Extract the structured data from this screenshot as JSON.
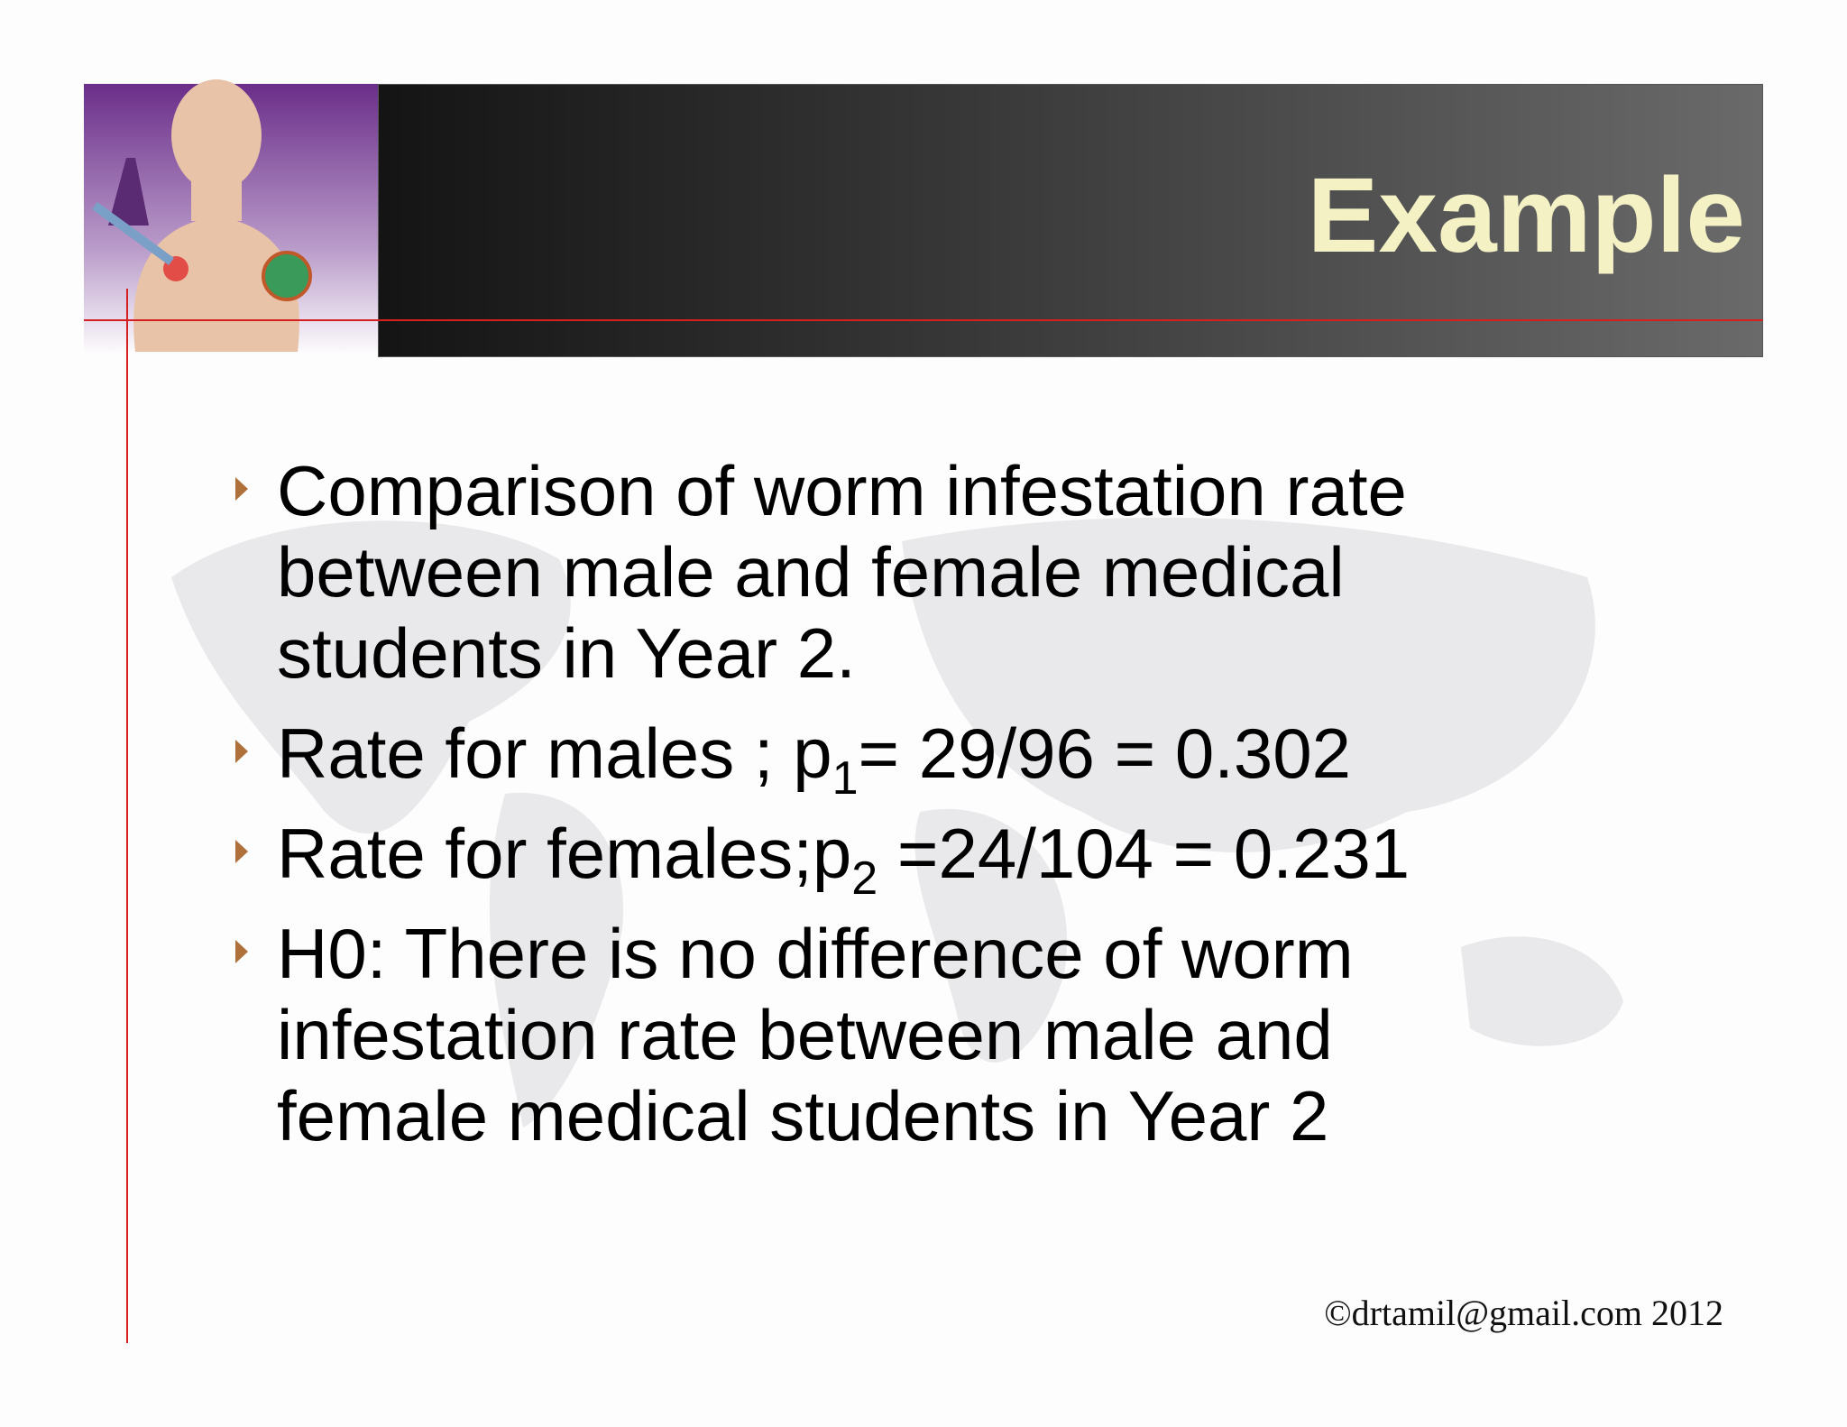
{
  "header": {
    "title": "Example"
  },
  "bullets": [
    {
      "text": "Comparison of worm infestation rate between male and female medical students in Year 2."
    },
    {
      "text": "Rate for males ; p",
      "subscript": "1",
      "tail": "= 29/96 = 0.302"
    },
    {
      "text": "Rate for females;p",
      "subscript": "2",
      "tail": " =24/104 = 0.231"
    },
    {
      "text": "H0: There is no difference of worm infestation rate between male and female medical students in Year 2"
    }
  ],
  "footer": {
    "text": "©drtamil@gmail.com 2012"
  }
}
